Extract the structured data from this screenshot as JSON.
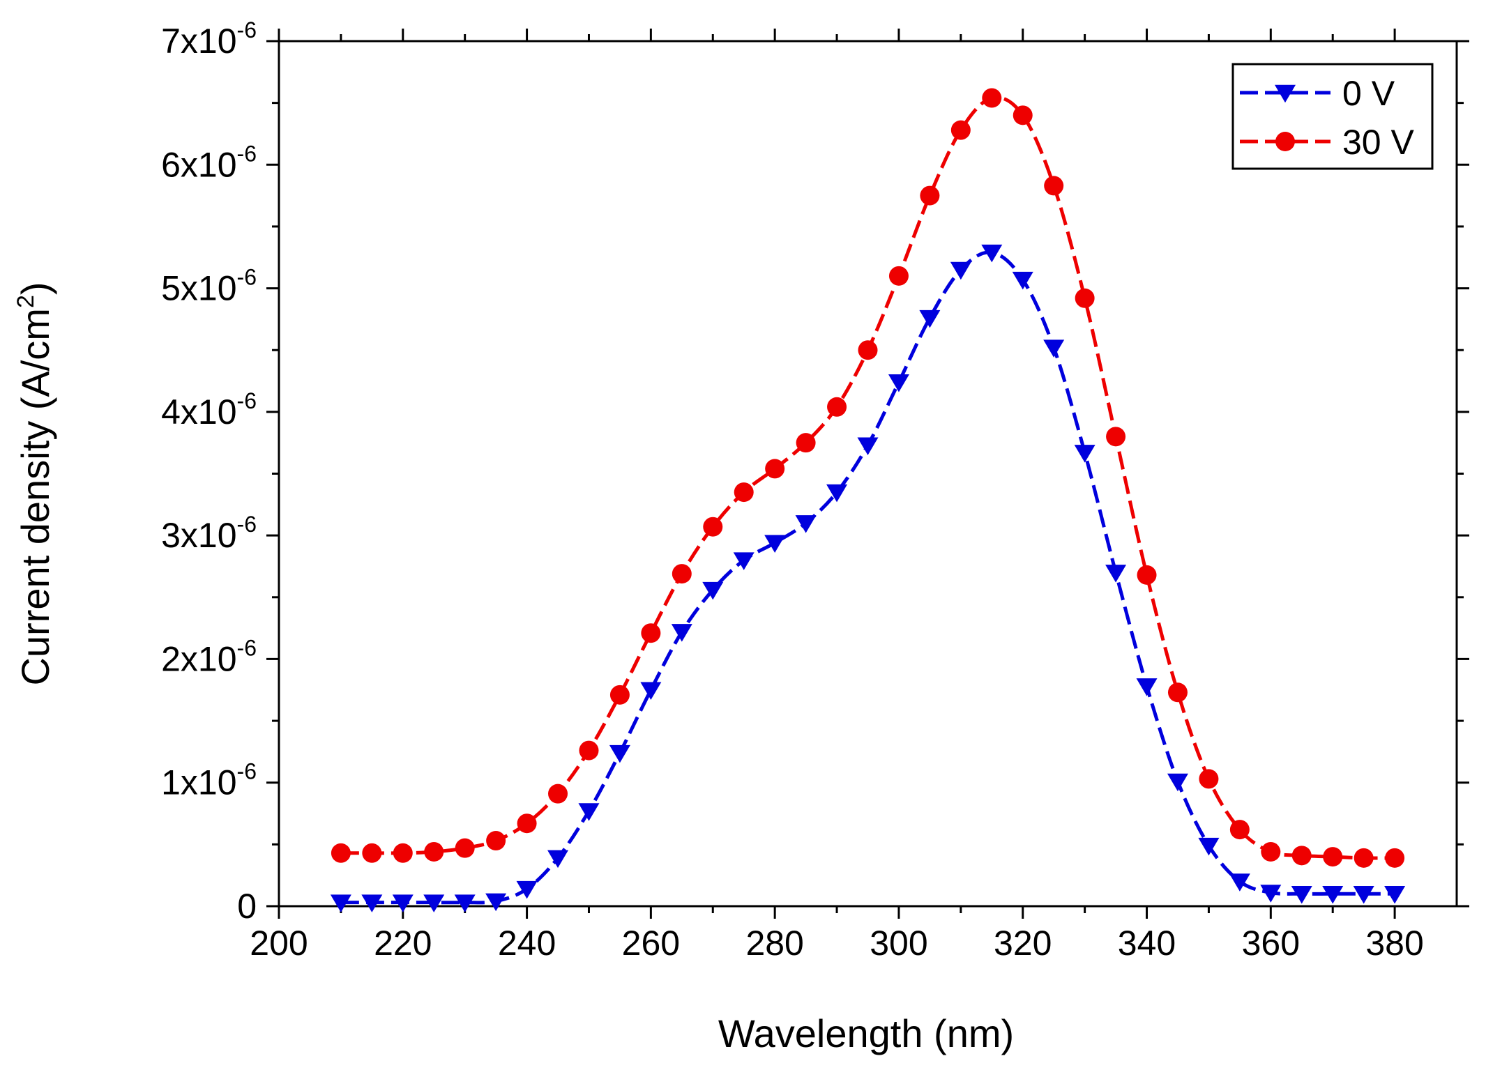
{
  "chart_data": {
    "type": "line",
    "title": "",
    "xlabel": "Wavelength (nm)",
    "ylabel": "Current density (A/cm",
    "ylabel_superscript": "2",
    "ylabel_suffix": ")",
    "xlim": [
      200,
      390
    ],
    "ylim": [
      0,
      7e-06
    ],
    "x_ticks": [
      200,
      220,
      240,
      260,
      280,
      300,
      320,
      340,
      360,
      380
    ],
    "x_tick_labels": [
      "200",
      "220",
      "240",
      "260",
      "280",
      "300",
      "320",
      "340",
      "360",
      "380"
    ],
    "y_ticks": [
      0,
      1e-06,
      2e-06,
      3e-06,
      4e-06,
      5e-06,
      6e-06,
      7e-06
    ],
    "y_tick_labels": [
      {
        "mantissa": "0",
        "exponent": ""
      },
      {
        "mantissa": "1x10",
        "exponent": "-6"
      },
      {
        "mantissa": "2x10",
        "exponent": "-6"
      },
      {
        "mantissa": "3x10",
        "exponent": "-6"
      },
      {
        "mantissa": "4x10",
        "exponent": "-6"
      },
      {
        "mantissa": "5x10",
        "exponent": "-6"
      },
      {
        "mantissa": "6x10",
        "exponent": "-6"
      },
      {
        "mantissa": "7x10",
        "exponent": "-6"
      }
    ],
    "legend_position": "top-right",
    "x": [
      210,
      215,
      220,
      225,
      230,
      235,
      240,
      245,
      250,
      255,
      260,
      265,
      270,
      275,
      280,
      285,
      290,
      295,
      300,
      305,
      310,
      315,
      320,
      325,
      330,
      335,
      340,
      345,
      350,
      355,
      360,
      365,
      370,
      375,
      380
    ],
    "series": [
      {
        "name": "0 V",
        "color": "#0000dd",
        "marker": "triangle-down",
        "dash": "dashed",
        "values": [
          3e-08,
          3e-08,
          3e-08,
          3e-08,
          3e-08,
          4e-08,
          1.4e-07,
          3.9e-07,
          7.7e-07,
          1.24e-06,
          1.75e-06,
          2.22e-06,
          2.56e-06,
          2.8e-06,
          2.94e-06,
          3.1e-06,
          3.35e-06,
          3.73e-06,
          4.24e-06,
          4.76e-06,
          5.15e-06,
          5.29e-06,
          5.07e-06,
          4.52e-06,
          3.67e-06,
          2.7e-06,
          1.78e-06,
          1.01e-06,
          4.9e-07,
          2e-07,
          1.1e-07,
          1e-07,
          1e-07,
          1e-07,
          1e-07
        ]
      },
      {
        "name": "30 V",
        "color": "#ee0000",
        "marker": "circle",
        "dash": "dashed",
        "values": [
          4.3e-07,
          4.3e-07,
          4.3e-07,
          4.4e-07,
          4.7e-07,
          5.3e-07,
          6.7e-07,
          9.1e-07,
          1.26e-06,
          1.71e-06,
          2.21e-06,
          2.69e-06,
          3.07e-06,
          3.35e-06,
          3.54e-06,
          3.75e-06,
          4.04e-06,
          4.5e-06,
          5.1e-06,
          5.75e-06,
          6.28e-06,
          6.54e-06,
          6.4e-06,
          5.83e-06,
          4.92e-06,
          3.8e-06,
          2.68e-06,
          1.73e-06,
          1.03e-06,
          6.2e-07,
          4.4e-07,
          4.1e-07,
          4e-07,
          3.9e-07,
          3.9e-07
        ]
      }
    ]
  }
}
